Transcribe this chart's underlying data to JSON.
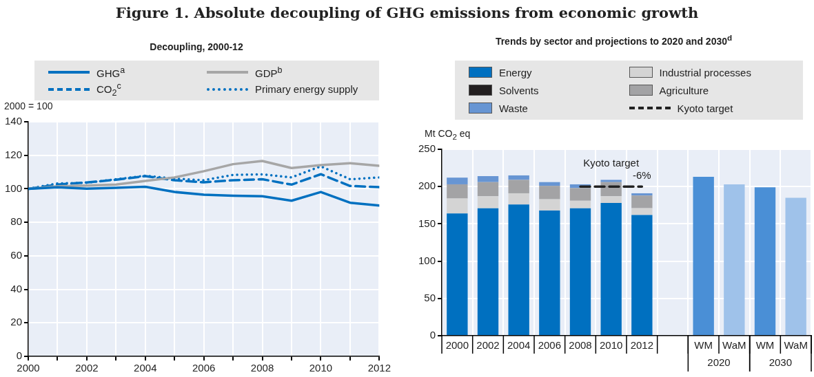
{
  "chart_data": [
    {
      "type": "line",
      "title": "Figure 1.  Absolute decoupling of GHG emissions from economic growth",
      "subtitle": "Decoupling, 2000-12",
      "ylabel": "2000 = 100",
      "x": [
        2000,
        2001,
        2002,
        2003,
        2004,
        2005,
        2006,
        2007,
        2008,
        2009,
        2010,
        2011,
        2012
      ],
      "series": [
        {
          "name": "GHG$^{a}$",
          "color": "#0070c0",
          "line_style": "solid",
          "values": [
            100,
            100.9,
            100.1,
            100.6,
            101.2,
            98.1,
            96.5,
            95.9,
            95.6,
            92.9,
            98.1,
            91.7,
            90
          ]
        },
        {
          "name": "GDP$^{b}$",
          "color": "#a6a6a6",
          "line_style": "solid",
          "values": [
            100,
            101.5,
            101.9,
            102.5,
            104.7,
            106.8,
            110.5,
            114.7,
            116.6,
            112.4,
            114.1,
            115.3,
            113.7
          ]
        },
        {
          "name": "CO$_{2}$$^{c}$",
          "color": "#0070c0",
          "line_style": "dashed",
          "values": [
            100,
            102.5,
            103.8,
            105.4,
            107.6,
            105.1,
            103.9,
            105.1,
            105.7,
            102.5,
            108.7,
            101.7,
            101
          ]
        },
        {
          "name": "Primary energy supply",
          "color": "#0070c0",
          "line_style": "dotted",
          "values": [
            100,
            103.2,
            103.6,
            105.7,
            107.8,
            106.1,
            105.1,
            108.3,
            108.6,
            106.8,
            113.4,
            105.7,
            106.8
          ]
        }
      ],
      "xlim": [
        2000,
        2012
      ],
      "xticks": [
        2000,
        {
          "value": 2001,
          "label": null
        },
        2002,
        {
          "value": 2003,
          "label": null
        },
        2004,
        {
          "value": 2005,
          "label": null
        },
        2006,
        {
          "value": 2007,
          "label": null
        },
        2008,
        {
          "value": 2009,
          "label": null
        },
        2010,
        {
          "value": 2011,
          "label": null
        },
        2012
      ],
      "ylim": [
        0,
        140
      ],
      "yticks": [
        0,
        20,
        40,
        60,
        80,
        100,
        120,
        140
      ],
      "grid": true,
      "legend": "top",
      "marker": "none"
    },
    {
      "type": "bar",
      "title": "Trends by sector and projections to 2020 and 2030$^{d}$",
      "ylabel": "Mt CO$_{2}$ eq",
      "stacked": true,
      "categories": [
        "2000",
        "2002",
        "2004",
        "2006",
        "2008",
        "2010",
        "2012",
        null,
        "WM",
        "WaM",
        "WM",
        "WaM"
      ],
      "series": [
        {
          "name": "Energy",
          "color": "#0070c0",
          "values": [
            164,
            171,
            176,
            168,
            171,
            178,
            162,
            null,
            null,
            null,
            null,
            null
          ]
        },
        {
          "name": "Industrial processes",
          "color": "#d4d4d4",
          "values": [
            20,
            16,
            15,
            15,
            10,
            9,
            9,
            null,
            null,
            null,
            null,
            null
          ]
        },
        {
          "name": "Solvents",
          "color": "#231f20",
          "values": [
            0,
            0,
            0,
            0,
            0,
            0,
            0,
            null,
            null,
            null,
            null,
            null
          ]
        },
        {
          "name": "Agriculture",
          "color": "#a3a3a5",
          "values": [
            19,
            19,
            18,
            18,
            17,
            19,
            17,
            null,
            null,
            null,
            null,
            null
          ]
        },
        {
          "name": "Waste",
          "color": "#6795d3",
          "values": [
            9,
            8,
            6,
            5,
            5,
            3,
            3,
            null,
            null,
            null,
            null,
            null
          ]
        },
        {
          "name": "Kyoto target",
          "type": "line",
          "color": "#222222",
          "line_style": "dashed",
          "values": [
            null,
            null,
            null,
            null,
            200,
            200,
            200,
            null,
            null,
            null,
            null,
            null
          ]
        },
        {
          "colors": [
            "#4a8fd6",
            "#4a8fd6",
            "#4a8fd6",
            "#4a8fd6",
            "#4a8fd6",
            "#4a8fd6",
            "#4a8fd6",
            "#4a8fd6",
            "#4a8fd6",
            "#9fc2ea",
            "#4a8fd6",
            "#9fc2ea"
          ],
          "values": [
            null,
            null,
            null,
            null,
            null,
            null,
            null,
            null,
            213,
            203,
            199,
            185
          ]
        }
      ],
      "annotations": [
        {
          "text": "Kyoto target",
          "x": "2010",
          "y": 200
        },
        {
          "text": "-6%",
          "x": "2012",
          "y": 200
        },
        "2020",
        "2030"
      ],
      "ylim": [
        0,
        250
      ],
      "yticks": [
        0,
        50,
        100,
        150,
        200,
        250
      ],
      "grid": true,
      "legend": "top",
      "marker": "none"
    }
  ]
}
